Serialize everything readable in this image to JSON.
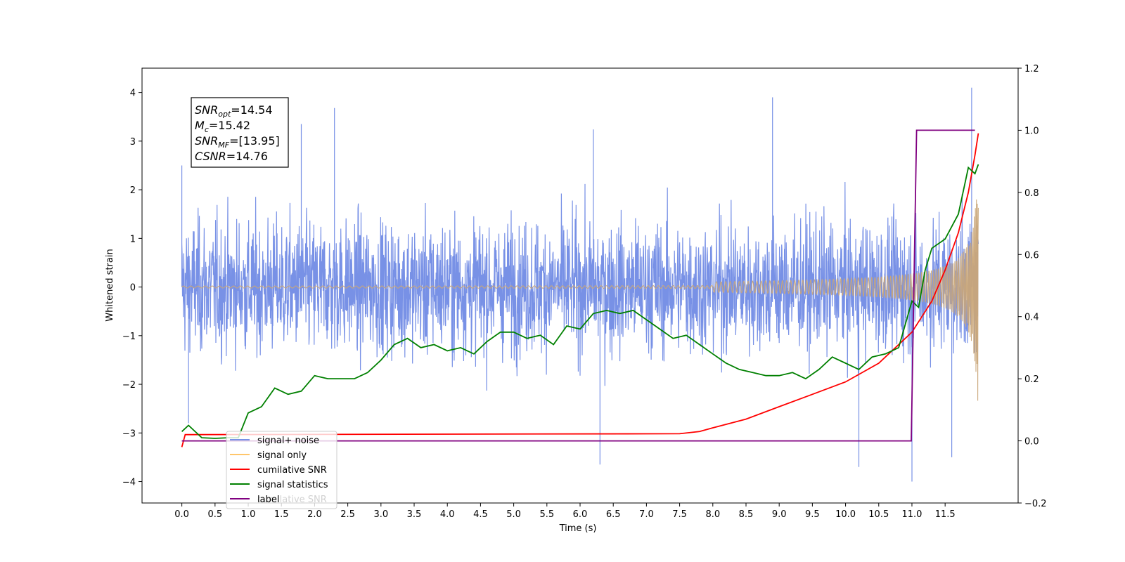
{
  "chart_data": {
    "type": "line",
    "xlabel": "Time (s)",
    "ylabel": "Whitened strain",
    "xlim": [
      -0.6,
      12.6
    ],
    "ylim": [
      -4.44,
      4.5
    ],
    "y2lim": [
      -0.2,
      1.2
    ],
    "x_ticks": [
      "0.0",
      "0.5",
      "1.0",
      "1.5",
      "2.0",
      "2.5",
      "3.0",
      "3.5",
      "4.0",
      "4.5",
      "5.0",
      "5.5",
      "6.0",
      "6.5",
      "7.0",
      "7.5",
      "8.0",
      "8.5",
      "9.0",
      "9.5",
      "10.0",
      "10.5",
      "11.0",
      "11.5"
    ],
    "y_ticks": [
      "4",
      "3",
      "2",
      "1",
      "0",
      "−1",
      "−2",
      "−3",
      "−4"
    ],
    "y2_ticks": [
      "1.2",
      "1.0",
      "0.8",
      "0.6",
      "0.4",
      "0.2",
      "0.0",
      "−0.2"
    ],
    "annotation": {
      "lines": [
        {
          "base": "SNR",
          "sub": "opt",
          "rest": "=14.54"
        },
        {
          "base": "M",
          "sub": "c",
          "rest": "=15.42"
        },
        {
          "base": "SNR",
          "sub": "MF",
          "rest": "=[13.95]"
        },
        {
          "base": "CSNR",
          "sub": "",
          "rest": "=14.76"
        }
      ]
    },
    "legend": {
      "placement": "lower-left",
      "entries": [
        {
          "label": "signal+ noise",
          "color": "#7891e6"
        },
        {
          "label": "signal only",
          "color": "#ffc66b"
        },
        {
          "label": "cumilative SNR",
          "color": "#ff0000"
        },
        {
          "label": "signal statistics",
          "color": "#008000"
        },
        {
          "label": "label",
          "color": "#800080"
        }
      ],
      "hidden_text": "cumilative SNR"
    },
    "series": [
      {
        "name": "signal+ noise",
        "axis": "left",
        "color": "#7891e6",
        "x_range": [
          0.0,
          12.0
        ],
        "envelope": [
          2.5,
          -2.5
        ],
        "peaks_high": [
          [
            0.0,
            2.5
          ],
          [
            1.8,
            3.35
          ],
          [
            2.3,
            3.68
          ],
          [
            6.2,
            3.24
          ],
          [
            8.9,
            3.9
          ],
          [
            11.9,
            4.1
          ]
        ],
        "peaks_low": [
          [
            0.1,
            -2.8
          ],
          [
            6.3,
            -3.65
          ],
          [
            10.2,
            -3.7
          ],
          [
            11.0,
            -4.0
          ],
          [
            11.6,
            -3.5
          ]
        ]
      },
      {
        "name": "signal only",
        "axis": "left",
        "color": "#c9a679",
        "x_range": [
          0.0,
          12.0
        ],
        "amplitude_start": 0.0,
        "amplitude_end": 2.6
      },
      {
        "name": "cumilative SNR",
        "axis": "right",
        "color": "#ff0000",
        "x": [
          0.0,
          0.05,
          7.5,
          7.8,
          8.0,
          8.5,
          9.0,
          9.5,
          10.0,
          10.5,
          11.0,
          11.3,
          11.5,
          11.7,
          11.85,
          11.95,
          12.0
        ],
        "y": [
          -0.02,
          0.02,
          0.023,
          0.03,
          0.042,
          0.07,
          0.11,
          0.15,
          0.19,
          0.25,
          0.35,
          0.45,
          0.55,
          0.67,
          0.8,
          0.92,
          0.99
        ]
      },
      {
        "name": "signal statistics",
        "axis": "right",
        "color": "#008000",
        "x": [
          0.0,
          0.1,
          0.3,
          0.5,
          0.7,
          0.85,
          1.0,
          1.2,
          1.4,
          1.6,
          1.8,
          2.0,
          2.2,
          2.4,
          2.6,
          2.8,
          3.0,
          3.2,
          3.4,
          3.6,
          3.8,
          4.0,
          4.2,
          4.4,
          4.6,
          4.8,
          5.0,
          5.2,
          5.4,
          5.6,
          5.8,
          6.0,
          6.2,
          6.4,
          6.6,
          6.8,
          7.0,
          7.2,
          7.4,
          7.6,
          7.8,
          8.0,
          8.2,
          8.4,
          8.6,
          8.8,
          9.0,
          9.2,
          9.4,
          9.6,
          9.8,
          10.0,
          10.2,
          10.4,
          10.6,
          10.8,
          11.0,
          11.1,
          11.2,
          11.3,
          11.5,
          11.7,
          11.85,
          11.95,
          12.0
        ],
        "y": [
          0.03,
          0.05,
          0.01,
          0.008,
          0.01,
          0.01,
          0.09,
          0.11,
          0.17,
          0.15,
          0.16,
          0.21,
          0.2,
          0.2,
          0.2,
          0.22,
          0.26,
          0.31,
          0.33,
          0.3,
          0.31,
          0.29,
          0.3,
          0.28,
          0.32,
          0.35,
          0.35,
          0.33,
          0.34,
          0.31,
          0.37,
          0.36,
          0.41,
          0.42,
          0.41,
          0.42,
          0.39,
          0.36,
          0.33,
          0.34,
          0.31,
          0.28,
          0.25,
          0.23,
          0.22,
          0.21,
          0.21,
          0.22,
          0.2,
          0.23,
          0.27,
          0.25,
          0.23,
          0.27,
          0.28,
          0.3,
          0.45,
          0.43,
          0.55,
          0.62,
          0.65,
          0.73,
          0.88,
          0.86,
          0.89
        ]
      },
      {
        "name": "label",
        "axis": "right",
        "color": "#800080",
        "x": [
          0.0,
          10.99,
          11.07,
          11.95
        ],
        "y": [
          0.0,
          0.0,
          1.0,
          1.0
        ]
      }
    ]
  }
}
